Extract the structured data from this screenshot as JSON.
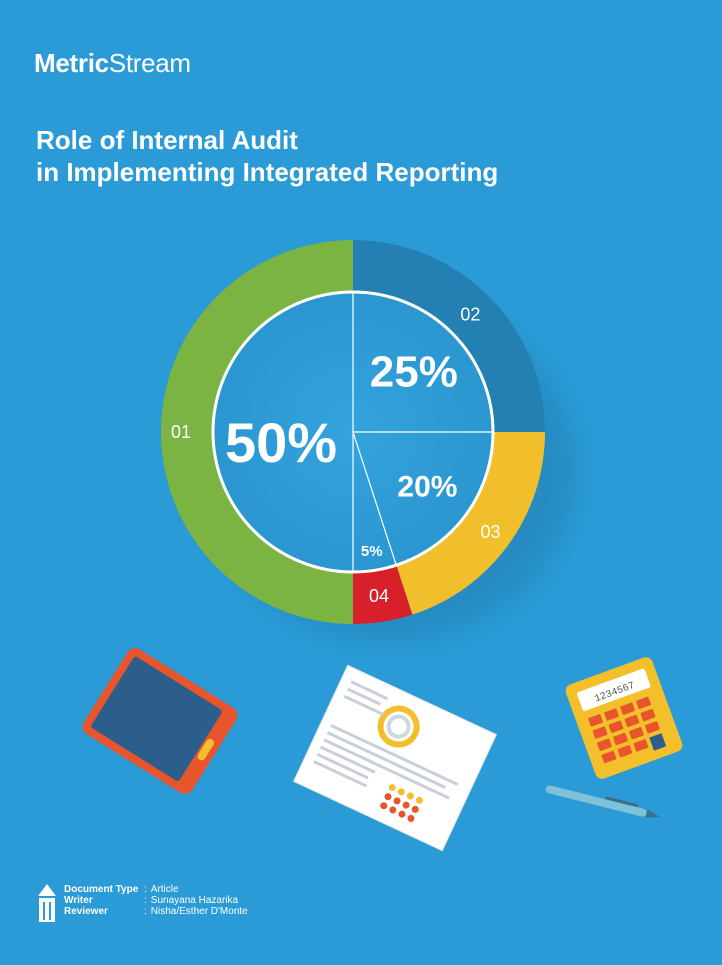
{
  "brand": {
    "name_bold": "Metric",
    "name_regular": "Stream"
  },
  "title": {
    "line1": "Role of Internal Audit",
    "line2": "in Implementing Integrated Reporting"
  },
  "chart_data": {
    "type": "pie",
    "segments": [
      {
        "label": "01",
        "value": 50,
        "value_label": "50%",
        "color": "#7bb443"
      },
      {
        "label": "02",
        "value": 25,
        "value_label": "25%",
        "color": "#2480b3"
      },
      {
        "label": "03",
        "value": 20,
        "value_label": "20%",
        "color": "#f2bf2c"
      },
      {
        "label": "04",
        "value": 5,
        "value_label": "5%",
        "color": "#d8202a"
      }
    ]
  },
  "footer": {
    "rows": [
      {
        "label": "Document Type",
        "value": "Article"
      },
      {
        "label": "Writer",
        "value": "Sunayana Hazarika"
      },
      {
        "label": "Reviewer",
        "value": "Nisha/Esther D'Monte"
      }
    ]
  },
  "calculator": {
    "display": "1234567"
  }
}
